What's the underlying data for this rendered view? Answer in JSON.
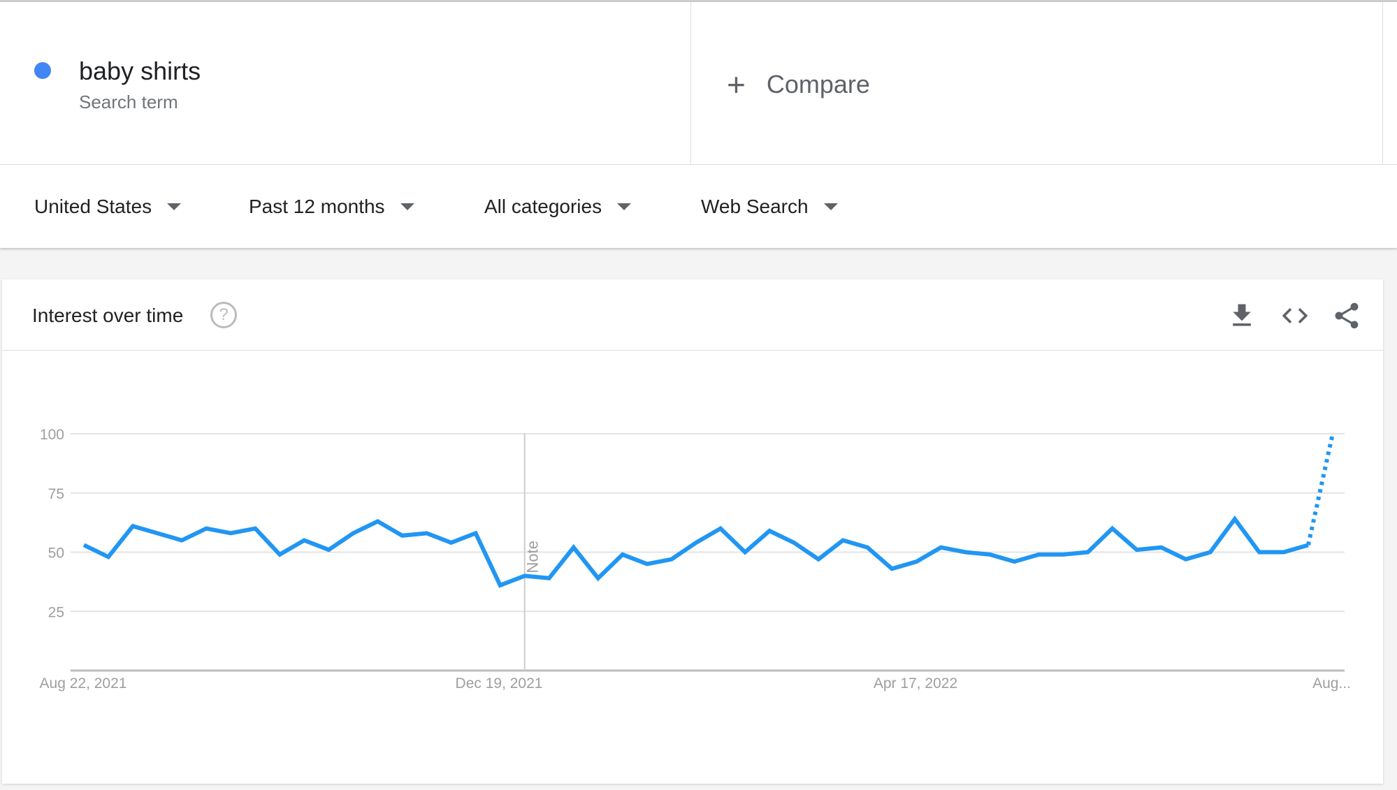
{
  "search_term": {
    "name": "baby shirts",
    "subtitle": "Search term",
    "color": "#4285f4"
  },
  "compare": {
    "label": "Compare",
    "icon": "plus-icon"
  },
  "filters": [
    {
      "label": "United States"
    },
    {
      "label": "Past 12 months"
    },
    {
      "label": "All categories"
    },
    {
      "label": "Web Search"
    }
  ],
  "card": {
    "title": "Interest over time",
    "help": "?",
    "tools": [
      "download-icon",
      "embed-code-icon",
      "share-icon"
    ]
  },
  "chart_data": {
    "type": "line",
    "title": "",
    "xlabel": "",
    "ylabel": "",
    "ylim": [
      0,
      100
    ],
    "yticks": [
      25,
      50,
      75,
      100
    ],
    "xtick_labels": [
      "Aug 22, 2021",
      "Dec 19, 2021",
      "Apr 17, 2022",
      "Aug..."
    ],
    "grid": true,
    "color": "#2196f3",
    "annotation": {
      "label": "Note",
      "index": 18
    },
    "partial_last_point": true,
    "values": [
      53,
      48,
      61,
      58,
      55,
      60,
      58,
      60,
      49,
      55,
      51,
      58,
      63,
      57,
      58,
      54,
      58,
      36,
      40,
      39,
      52,
      39,
      49,
      45,
      47,
      54,
      60,
      50,
      59,
      54,
      47,
      55,
      52,
      43,
      46,
      52,
      50,
      49,
      46,
      49,
      49,
      50,
      60,
      51,
      52,
      47,
      50,
      64,
      50,
      50,
      53,
      100
    ]
  }
}
